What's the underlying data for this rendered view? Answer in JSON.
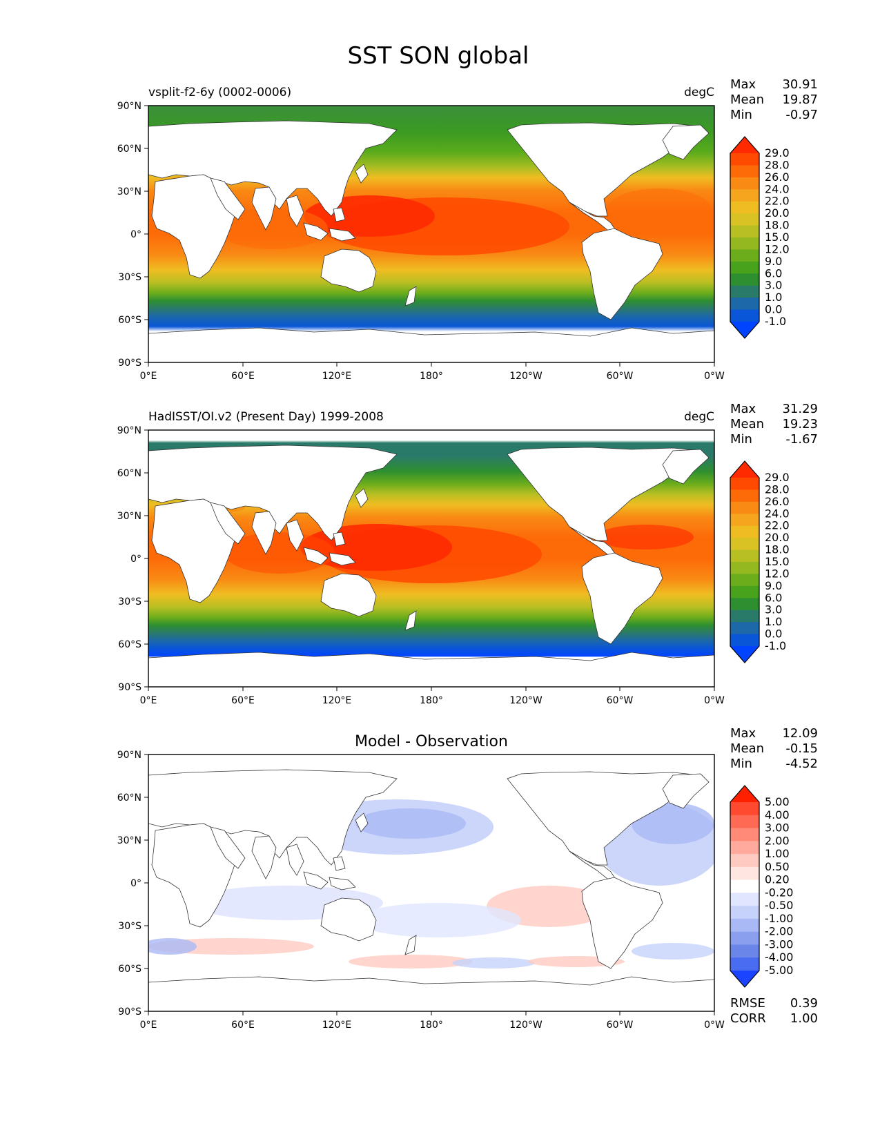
{
  "title": "SST SON global",
  "axes": {
    "lat_ticks": [
      "90°N",
      "60°N",
      "30°N",
      "0°",
      "30°S",
      "60°S",
      "90°S"
    ],
    "lon_ticks": [
      "0°E",
      "60°E",
      "120°E",
      "180°",
      "120°W",
      "60°W",
      "0°W"
    ]
  },
  "panels": [
    {
      "id": "model",
      "left_title": "vsplit-f2-6y (0002-0006)",
      "center_title": "",
      "units": "degC",
      "stats": [
        {
          "label": "Max",
          "value": "30.91"
        },
        {
          "label": "Mean",
          "value": "19.87"
        },
        {
          "label": "Min",
          "value": "-0.97"
        }
      ],
      "colorbar_labels": [
        "29.0",
        "28.0",
        "26.0",
        "24.0",
        "22.0",
        "20.0",
        "18.0",
        "15.0",
        "12.0",
        "9.0",
        "6.0",
        "3.0",
        "1.0",
        "0.0",
        "-1.0"
      ],
      "colorbar_colors": [
        "#ff2a00",
        "#ff4a00",
        "#fd6a08",
        "#f98a14",
        "#f5a51e",
        "#efbd22",
        "#d8c224",
        "#b8bf23",
        "#94b820",
        "#6cad1c",
        "#49a21c",
        "#2e8f30",
        "#2a7a6a",
        "#1c68a8",
        "#0a56d8",
        "#0044ff"
      ]
    },
    {
      "id": "obs",
      "left_title": "HadISST/OI.v2 (Present Day) 1999-2008",
      "center_title": "",
      "units": "degC",
      "stats": [
        {
          "label": "Max",
          "value": "31.29"
        },
        {
          "label": "Mean",
          "value": "19.23"
        },
        {
          "label": "Min",
          "value": "-1.67"
        }
      ],
      "colorbar_labels": [
        "29.0",
        "28.0",
        "26.0",
        "24.0",
        "22.0",
        "20.0",
        "18.0",
        "15.0",
        "12.0",
        "9.0",
        "6.0",
        "3.0",
        "1.0",
        "0.0",
        "-1.0"
      ],
      "colorbar_colors": [
        "#ff2a00",
        "#ff4a00",
        "#fd6a08",
        "#f98a14",
        "#f5a51e",
        "#efbd22",
        "#d8c224",
        "#b8bf23",
        "#94b820",
        "#6cad1c",
        "#49a21c",
        "#2e8f30",
        "#2a7a6a",
        "#1c68a8",
        "#0a56d8",
        "#0044ff"
      ]
    },
    {
      "id": "diff",
      "left_title": "",
      "center_title": "Model - Observation",
      "units": "",
      "stats": [
        {
          "label": "Max",
          "value": "12.09"
        },
        {
          "label": "Mean",
          "value": "-0.15"
        },
        {
          "label": "Min",
          "value": "-4.52"
        }
      ],
      "colorbar_labels": [
        "5.00",
        "4.00",
        "3.00",
        "2.00",
        "1.00",
        "0.50",
        "0.20",
        "-0.20",
        "-0.50",
        "-1.00",
        "-2.00",
        "-3.00",
        "-4.00",
        "-5.00"
      ],
      "colorbar_colors": [
        "#ff2000",
        "#ff4a30",
        "#ff6a55",
        "#ff8a78",
        "#ffaa9c",
        "#ffcac0",
        "#ffe6e0",
        "#ffffff",
        "#e0e6ff",
        "#c6d2fa",
        "#a9b9f5",
        "#8aa0ee",
        "#6a86e8",
        "#4a6cf0",
        "#1a44ff"
      ],
      "bottom_stats": [
        {
          "label": "RMSE",
          "value": "0.39"
        },
        {
          "label": "CORR",
          "value": "1.00"
        }
      ]
    }
  ]
}
